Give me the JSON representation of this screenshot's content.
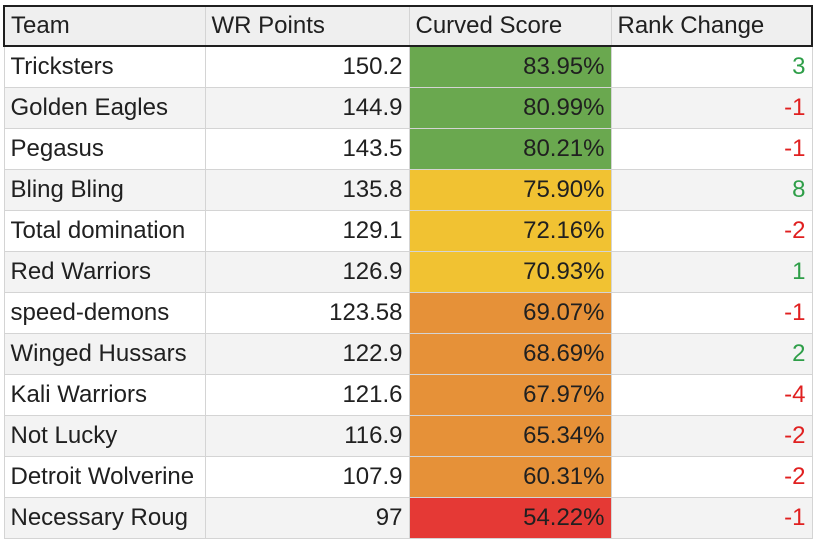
{
  "table": {
    "headers": {
      "team": "Team",
      "wr_points": "WR Points",
      "curved_score": "Curved Score",
      "rank_change": "Rank Change"
    },
    "rows": [
      {
        "team": "Tricksters",
        "wr_points": "150.2",
        "curved_score": "83.95%",
        "rank_change": "3",
        "tier": "green",
        "trend": "up"
      },
      {
        "team": "Golden Eagles",
        "wr_points": "144.9",
        "curved_score": "80.99%",
        "rank_change": "-1",
        "tier": "green",
        "trend": "down"
      },
      {
        "team": "Pegasus",
        "wr_points": "143.5",
        "curved_score": "80.21%",
        "rank_change": "-1",
        "tier": "green",
        "trend": "down"
      },
      {
        "team": "Bling Bling",
        "wr_points": "135.8",
        "curved_score": "75.90%",
        "rank_change": "8",
        "tier": "yellow",
        "trend": "up"
      },
      {
        "team": "Total domination",
        "wr_points": "129.1",
        "curved_score": "72.16%",
        "rank_change": "-2",
        "tier": "yellow",
        "trend": "down"
      },
      {
        "team": "Red Warriors",
        "wr_points": "126.9",
        "curved_score": "70.93%",
        "rank_change": "1",
        "tier": "yellow",
        "trend": "up"
      },
      {
        "team": "speed-demons",
        "wr_points": "123.58",
        "curved_score": "69.07%",
        "rank_change": "-1",
        "tier": "orange",
        "trend": "down"
      },
      {
        "team": "Winged Hussars",
        "wr_points": "122.9",
        "curved_score": "68.69%",
        "rank_change": "2",
        "tier": "orange",
        "trend": "up"
      },
      {
        "team": "Kali Warriors",
        "wr_points": "121.6",
        "curved_score": "67.97%",
        "rank_change": "-4",
        "tier": "orange",
        "trend": "down"
      },
      {
        "team": "Not Lucky",
        "wr_points": "116.9",
        "curved_score": "65.34%",
        "rank_change": "-2",
        "tier": "orange",
        "trend": "down"
      },
      {
        "team": "Detroit Wolverine",
        "wr_points": "107.9",
        "curved_score": "60.31%",
        "rank_change": "-2",
        "tier": "orange",
        "trend": "down"
      },
      {
        "team": "Necessary Roug",
        "wr_points": "97",
        "curved_score": "54.22%",
        "rank_change": "-1",
        "tier": "red",
        "trend": "down"
      }
    ]
  },
  "colors": {
    "tier_green": "#6aa84f",
    "tier_yellow": "#f1c232",
    "tier_orange": "#e69138",
    "tier_red": "#e53935",
    "positive_text": "#2e9e48",
    "negative_text": "#e02020",
    "header_bg": "#efefef"
  }
}
